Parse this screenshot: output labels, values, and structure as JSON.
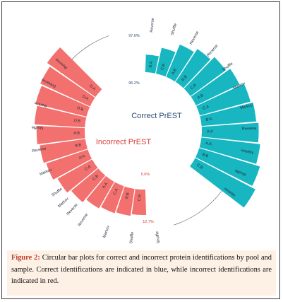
{
  "chart_data": {
    "type": "circular-bar",
    "groups": [
      {
        "name": "Correct PrEST",
        "color": "#17b6c0",
        "bars": [
          {
            "label": "B:A",
            "sample": "Reverse",
            "value": 4
          },
          {
            "label": "C:B",
            "sample": "Shuffle",
            "value": 6
          },
          {
            "label": "A:B",
            "sample": "Reverse",
            "value": 8
          },
          {
            "label": "B:B",
            "sample": "Reverse",
            "value": 9
          },
          {
            "label": "C:A",
            "sample": "Shuffle",
            "value": 10
          },
          {
            "label": "A:B",
            "sample": "Shuffle",
            "value": 11
          },
          {
            "label": "C:A",
            "sample": "Markov",
            "value": 12
          },
          {
            "label": "B:A",
            "sample": "Markov",
            "value": 12.5
          },
          {
            "label": "A:A",
            "sample": "Reverse",
            "value": 13
          },
          {
            "label": "A:A",
            "sample": "Markov",
            "value": 13.5
          },
          {
            "label": "B:B",
            "sample": "Shuffle",
            "value": 14.5
          },
          {
            "label": "C:B",
            "sample": "Markov",
            "value": 15.5
          }
        ]
      },
      {
        "name": "Incorrect PrEST",
        "color": "#f2706e",
        "bars": [
          {
            "label": "C:B",
            "sample": "Markov",
            "value": 5.8
          },
          {
            "label": "B:B",
            "sample": "Reverse",
            "value": 6.2
          },
          {
            "label": "C:A",
            "sample": "Markov",
            "value": 6.5
          },
          {
            "label": "A:A",
            "sample": "Shuffle",
            "value": 7
          },
          {
            "label": "C:B",
            "sample": "Shuffle",
            "value": 8
          },
          {
            "label": "C:A",
            "sample": "Reverse",
            "value": 9
          },
          {
            "label": "A:A",
            "sample": "Dreverse",
            "value": 10
          },
          {
            "label": "B:B",
            "sample": "Markov",
            "value": 10.5
          },
          {
            "label": "A:B",
            "sample": "Shuffle",
            "value": 11
          },
          {
            "label": "D:B",
            "sample": "Reverse",
            "value": 11.5
          },
          {
            "label": "D:B",
            "sample": "Markov",
            "value": 12
          },
          {
            "label": "D:A",
            "sample": "Shuffle",
            "value": 12.5
          },
          {
            "label": "D:A",
            "sample": "Reverse",
            "value": 13.5
          }
        ]
      }
    ],
    "outer_labels": {
      "top_right": [
        "Reverse",
        "Shuffle",
        "Reverse",
        "Reverse",
        "Shuffle",
        "Markov",
        "Markov",
        "Reverse",
        "Markov",
        "Shuffle",
        "Markov"
      ],
      "bottom_left": [
        "Shuffle",
        "Shuffle",
        "Markov",
        "Reverse",
        "Markov"
      ]
    },
    "annotations": [
      "97.6%",
      "95.2%",
      "5.6%",
      "12.7%"
    ]
  },
  "caption": {
    "label": "Figure 2:",
    "text": " Circular bar plots for correct and incorrect protein identifications by pool and sample. Correct identifications are indicated in blue, while incorrect identifications are indicated in red."
  }
}
